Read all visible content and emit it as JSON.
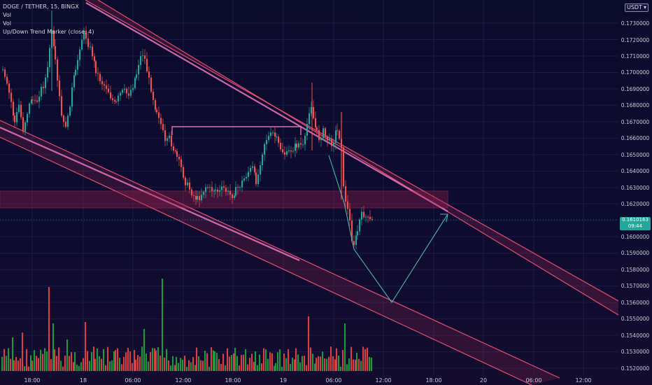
{
  "header": {
    "symbol_line": "DOGE / TETHER, 15, BINGX",
    "indicators": [
      "Vol",
      "Vol",
      "Up/Down Trend Marker (close, 4)"
    ]
  },
  "price_axis": {
    "currency_label": "USDT",
    "ticks": [
      "0.1730000",
      "0.1720000",
      "0.1710000",
      "0.1700000",
      "0.1690000",
      "0.1680000",
      "0.1670000",
      "0.1660000",
      "0.1650000",
      "0.1640000",
      "0.1630000",
      "0.1620000",
      "0.1600000",
      "0.1590000",
      "0.1580000",
      "0.1570000",
      "0.1560000",
      "0.1550000",
      "0.1540000",
      "0.1530000",
      "0.1520000"
    ]
  },
  "current_price": {
    "value": "0.1610163",
    "countdown": "09:44",
    "color": "#26a69a"
  },
  "time_axis": {
    "ticks": [
      "18:00",
      "18",
      "06:00",
      "12:00",
      "18:00",
      "19",
      "06:00",
      "12:00",
      "18:00",
      "20",
      "06:00",
      "12:00"
    ]
  },
  "colors": {
    "up": "#26a69a",
    "down": "#ef5350",
    "zone": "#ef5350",
    "projection": "#4db6ac"
  }
}
